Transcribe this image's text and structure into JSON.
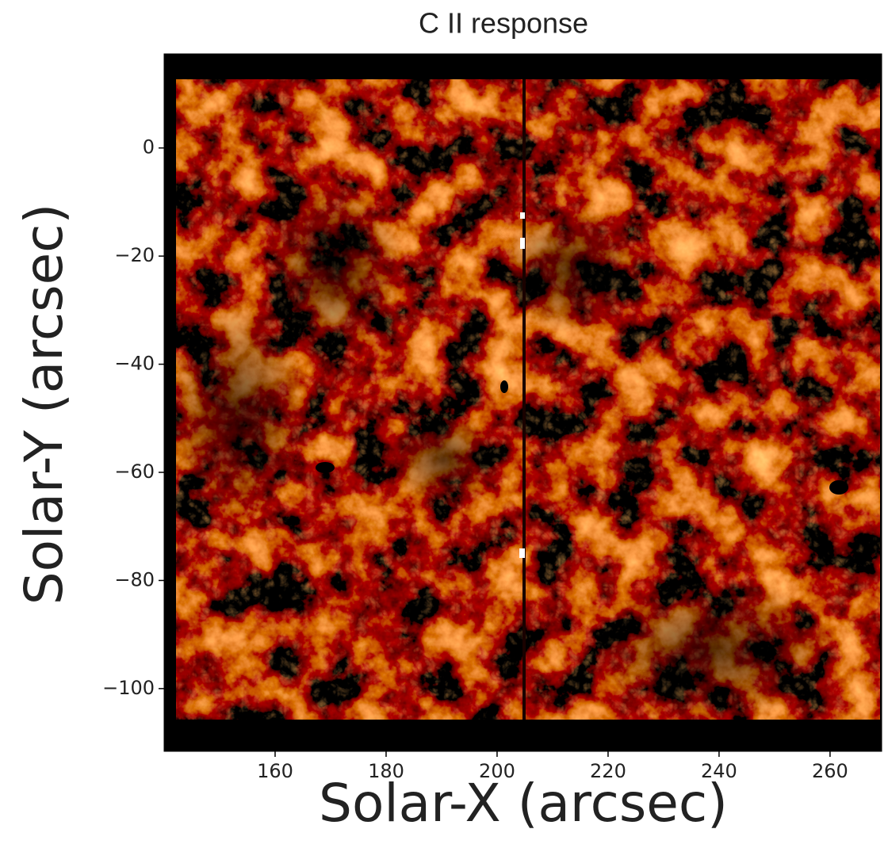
{
  "chart_data": {
    "type": "image",
    "title": "C II response",
    "x_label": "Solar-X (arcsec)",
    "y_label": "Solar-Y (arcsec)",
    "xlim": [
      140,
      269.3
    ],
    "ylim": [
      -111.6,
      17.4
    ],
    "xticks": [
      160,
      180,
      200,
      220,
      240,
      260
    ],
    "yticks": [
      0,
      {
        "value": -20,
        "label": "−20"
      },
      {
        "value": -40,
        "label": "−40"
      },
      {
        "value": -60,
        "label": "−60"
      },
      {
        "value": -80,
        "label": "−80"
      },
      {
        "value": -100,
        "label": "−100"
      }
    ]
  }
}
